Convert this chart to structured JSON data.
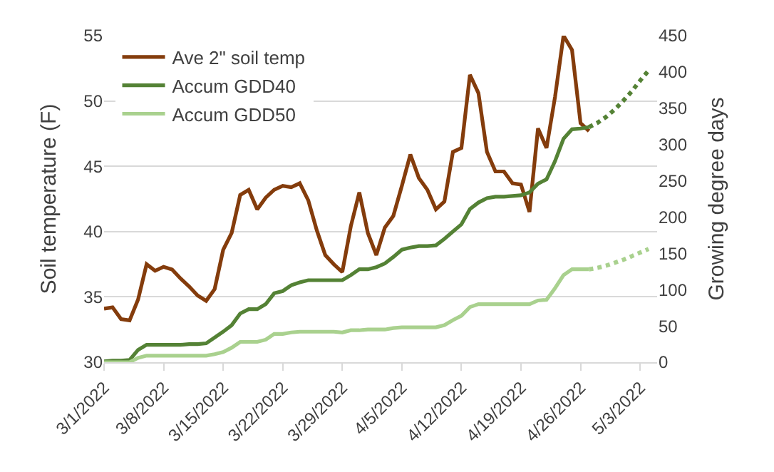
{
  "chart_data": {
    "type": "line",
    "ylabel": "Soil temperature (F)",
    "y2label": "Growing degree days",
    "x": [
      "2022-03-01",
      "2022-03-02",
      "2022-03-03",
      "2022-03-04",
      "2022-03-05",
      "2022-03-06",
      "2022-03-07",
      "2022-03-08",
      "2022-03-09",
      "2022-03-10",
      "2022-03-11",
      "2022-03-12",
      "2022-03-13",
      "2022-03-14",
      "2022-03-15",
      "2022-03-16",
      "2022-03-17",
      "2022-03-18",
      "2022-03-19",
      "2022-03-20",
      "2022-03-21",
      "2022-03-22",
      "2022-03-23",
      "2022-03-24",
      "2022-03-25",
      "2022-03-26",
      "2022-03-27",
      "2022-03-28",
      "2022-03-29",
      "2022-03-30",
      "2022-03-31",
      "2022-04-01",
      "2022-04-02",
      "2022-04-03",
      "2022-04-04",
      "2022-04-05",
      "2022-04-06",
      "2022-04-07",
      "2022-04-08",
      "2022-04-09",
      "2022-04-10",
      "2022-04-11",
      "2022-04-12",
      "2022-04-13",
      "2022-04-14",
      "2022-04-15",
      "2022-04-16",
      "2022-04-17",
      "2022-04-18",
      "2022-04-19",
      "2022-04-20",
      "2022-04-21",
      "2022-04-22",
      "2022-04-23",
      "2022-04-24",
      "2022-04-25",
      "2022-04-26",
      "2022-04-27"
    ],
    "series": [
      {
        "name": "Ave 2\" soil temp",
        "color": "#843c0c",
        "values": [
          34.1,
          34.2,
          33.3,
          33.2,
          34.8,
          37.5,
          37.0,
          37.3,
          37.1,
          36.4,
          35.8,
          35.1,
          34.7,
          35.6,
          38.6,
          39.9,
          42.8,
          43.2,
          41.7,
          42.6,
          43.2,
          43.5,
          43.4,
          43.7,
          42.4,
          40.1,
          38.2,
          37.5,
          36.9,
          40.4,
          43.0,
          39.9,
          38.2,
          40.3,
          41.2,
          43.5,
          45.9,
          44.1,
          43.2,
          41.7,
          42.3,
          46.1,
          46.4,
          52.0,
          50.6,
          46.1,
          44.6,
          44.6,
          43.7,
          43.6,
          41.5,
          47.9,
          46.4,
          50.3,
          55.0,
          53.9,
          48.3,
          47.7
        ]
      },
      {
        "name": "Accum GDD40",
        "color": "#548235",
        "axis": "y2",
        "values": [
          1,
          2,
          2,
          3,
          17,
          24,
          24,
          24,
          24,
          24,
          25,
          25,
          26,
          34,
          42,
          51,
          67,
          73,
          73,
          80,
          95,
          98,
          106,
          110,
          113,
          113,
          113,
          113,
          113,
          120,
          128,
          128,
          131,
          136,
          145,
          155,
          158,
          160,
          160,
          161,
          170,
          180,
          190,
          211,
          220,
          226,
          228,
          228,
          229,
          230,
          234,
          246,
          252,
          277,
          308,
          321,
          322,
          324
        ]
      },
      {
        "name": "Accum GDD50",
        "color": "#a9d18e",
        "axis": "y2",
        "values": [
          0,
          0,
          0,
          0,
          6,
          9,
          9,
          9,
          9,
          9,
          9,
          9,
          9,
          11,
          14,
          20,
          28,
          28,
          28,
          31,
          39,
          39,
          41,
          42,
          42,
          42,
          42,
          42,
          41,
          44,
          44,
          45,
          45,
          45,
          47,
          48,
          48,
          48,
          48,
          48,
          51,
          58,
          64,
          76,
          80,
          80,
          80,
          80,
          80,
          80,
          80,
          85,
          86,
          102,
          120,
          128,
          128,
          128
        ]
      },
      {
        "color": "#548235",
        "axis": "y2",
        "line_style": "dotted",
        "x": [
          "2022-04-27",
          "2022-04-28",
          "2022-04-29",
          "2022-04-30",
          "2022-05-01",
          "2022-05-02",
          "2022-05-03",
          "2022-05-04"
        ],
        "values": [
          324,
          330,
          338,
          348,
          360,
          373,
          388,
          402
        ]
      },
      {
        "color": "#a9d18e",
        "axis": "y2",
        "line_style": "dotted",
        "x": [
          "2022-04-27",
          "2022-04-28",
          "2022-04-29",
          "2022-04-30",
          "2022-05-01",
          "2022-05-02",
          "2022-05-03",
          "2022-05-04"
        ],
        "values": [
          128,
          130,
          133,
          137,
          141,
          146,
          151,
          156
        ]
      }
    ],
    "xlim": [
      "2022-03-01",
      "2022-05-05"
    ],
    "xticks": [
      {
        "value": "2022-03-01",
        "label": "3/1/2022"
      },
      {
        "value": "2022-03-08",
        "label": "3/8/2022"
      },
      {
        "value": "2022-03-15",
        "label": "3/15/2022"
      },
      {
        "value": "2022-03-22",
        "label": "3/22/2022"
      },
      {
        "value": "2022-03-29",
        "label": "3/29/2022"
      },
      {
        "value": "2022-04-05",
        "label": "4/5/2022"
      },
      {
        "value": "2022-04-12",
        "label": "4/12/2022"
      },
      {
        "value": "2022-04-19",
        "label": "4/19/2022"
      },
      {
        "value": "2022-04-26",
        "label": "4/26/2022"
      },
      {
        "value": "2022-05-03",
        "label": "5/3/2022"
      }
    ],
    "ylim": [
      30,
      55
    ],
    "yticks": [
      30,
      35,
      40,
      45,
      50,
      55
    ],
    "y2lim": [
      0,
      450
    ],
    "y2ticks": [
      0,
      50,
      100,
      150,
      200,
      250,
      300,
      350,
      400,
      450
    ],
    "grid": "y",
    "legend": "top left",
    "marker": "none",
    "line_style": "solid"
  }
}
